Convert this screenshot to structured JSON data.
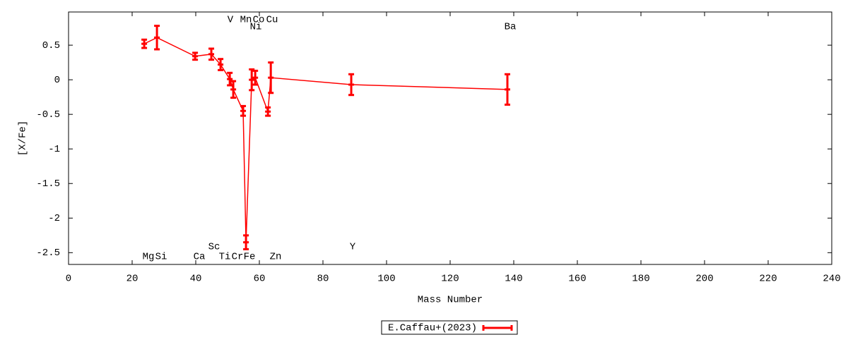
{
  "chart_data": {
    "type": "errorline",
    "xlabel": "Mass Number",
    "ylabel": "[X/Fe]",
    "xlim": [
      0,
      240
    ],
    "ylim": [
      -2.67,
      0.98
    ],
    "xticks": [
      0,
      20,
      40,
      60,
      80,
      100,
      120,
      140,
      160,
      180,
      200,
      220,
      240
    ],
    "yticks": [
      -2.5,
      -2,
      -1.5,
      -1,
      -0.5,
      0,
      0.5
    ],
    "legend": "bottom",
    "annotations": [
      "V",
      "Mn",
      "Co",
      "Cu",
      "Ni",
      "Ba",
      "Sc",
      "Y",
      "Mg",
      "Si",
      "Ca",
      "Ti",
      "Cr",
      "Fe",
      "Zn"
    ],
    "series": [
      {
        "name": "E.Caffau+(2023)",
        "color": "#ff0000",
        "x": [
          23.8,
          27.8,
          39.8,
          44.9,
          47.8,
          50.7,
          51.8,
          54.9,
          55.8,
          57.6,
          58.7,
          62.7,
          63.6,
          88.9,
          138
        ],
        "values": [
          0.52,
          0.61,
          0.34,
          0.37,
          0.22,
          0.01,
          -0.14,
          -0.45,
          -2.35,
          0.0,
          0.03,
          -0.46,
          0.03,
          -0.07,
          -0.14
        ],
        "errors": [
          0.06,
          0.17,
          0.05,
          0.08,
          0.08,
          0.09,
          0.12,
          0.07,
          0.1,
          0.15,
          0.1,
          0.06,
          0.22,
          0.15,
          0.22
        ]
      }
    ]
  }
}
